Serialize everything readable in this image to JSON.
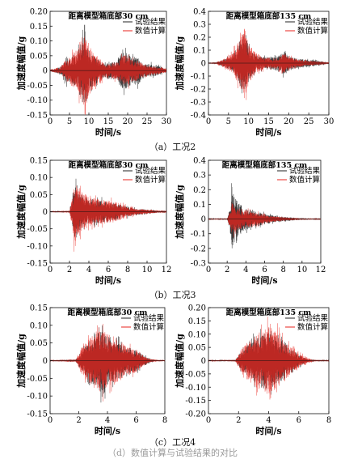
{
  "figure": {
    "captions": [
      "（a）工况2",
      "（b）工况3",
      "（c）工况4"
    ],
    "bottom_fragment": "（d）数值计算与试验结果的对比"
  },
  "chart_data": [
    {
      "type": "line",
      "title": "距离模型箱底部30 cm",
      "xlabel": "时间/s",
      "ylabel": "加速度幅值/g",
      "xlim": [
        0,
        30
      ],
      "ylim": [
        -0.15,
        0.2
      ],
      "xticks": [
        "0",
        "5",
        "10",
        "15",
        "20",
        "25",
        "30"
      ],
      "yticks": [
        "-0.15",
        "-0.10",
        "-0.05",
        "0",
        "0.05",
        "0.10",
        "0.15",
        "0.20"
      ],
      "legend": "top-right",
      "series": [
        {
          "name": "试验结果",
          "color": "#222222",
          "envelope": [
            [
              0,
              0.004
            ],
            [
              1.5,
              0.01
            ],
            [
              3,
              0.02
            ],
            [
              4,
              0.06
            ],
            [
              5,
              0.05
            ],
            [
              6,
              0.07
            ],
            [
              7,
              0.08
            ],
            [
              8,
              0.13
            ],
            [
              9,
              0.16
            ],
            [
              10,
              0.1
            ],
            [
              11,
              0.07
            ],
            [
              12,
              0.06
            ],
            [
              13,
              0.04
            ],
            [
              14,
              0.03
            ],
            [
              15,
              0.04
            ],
            [
              17,
              0.04
            ],
            [
              18,
              0.07
            ],
            [
              19,
              0.09
            ],
            [
              20,
              0.08
            ],
            [
              21,
              0.06
            ],
            [
              22,
              0.07
            ],
            [
              23,
              0.06
            ],
            [
              24,
              0.03
            ],
            [
              26,
              0.03
            ],
            [
              28,
              0.02
            ],
            [
              29.5,
              0.01
            ]
          ]
        },
        {
          "name": "数值计算",
          "color": "#e8231c",
          "envelope": [
            [
              0,
              0.004
            ],
            [
              1.5,
              0.01
            ],
            [
              3,
              0.02
            ],
            [
              4,
              0.05
            ],
            [
              5,
              0.06
            ],
            [
              6,
              0.08
            ],
            [
              7,
              0.09
            ],
            [
              8,
              0.15
            ],
            [
              9,
              0.17
            ],
            [
              10,
              0.12
            ],
            [
              11,
              0.08
            ],
            [
              12,
              0.07
            ],
            [
              13,
              0.05
            ],
            [
              14,
              0.03
            ],
            [
              15,
              0.03
            ],
            [
              17,
              0.04
            ],
            [
              18,
              0.05
            ],
            [
              19,
              0.07
            ],
            [
              20,
              0.07
            ],
            [
              21,
              0.05
            ],
            [
              22,
              0.05
            ],
            [
              23,
              0.04
            ],
            [
              24,
              0.03
            ],
            [
              26,
              0.02
            ],
            [
              28,
              0.015
            ],
            [
              29.5,
              0.01
            ]
          ]
        }
      ]
    },
    {
      "type": "line",
      "title": "距离模型箱底部135 cm",
      "xlabel": "时间/s",
      "ylabel": "加速度幅值/g",
      "xlim": [
        0,
        30
      ],
      "ylim": [
        -0.4,
        0.4
      ],
      "xticks": [
        "0",
        "5",
        "10",
        "15",
        "20",
        "25",
        "30"
      ],
      "yticks": [
        "-0.4",
        "-0.3",
        "-0.2",
        "-0.1",
        "0",
        "0.1",
        "0.2",
        "0.3",
        "0.4"
      ],
      "legend": "top-right",
      "series": [
        {
          "name": "试验结果",
          "color": "#222222",
          "envelope": [
            [
              0,
              0.005
            ],
            [
              2,
              0.01
            ],
            [
              4,
              0.04
            ],
            [
              6,
              0.08
            ],
            [
              7,
              0.15
            ],
            [
              8,
              0.25
            ],
            [
              9,
              0.3
            ],
            [
              10,
              0.2
            ],
            [
              11,
              0.12
            ],
            [
              12,
              0.08
            ],
            [
              14,
              0.06
            ],
            [
              16,
              0.06
            ],
            [
              18,
              0.1
            ],
            [
              19,
              0.12
            ],
            [
              20,
              0.08
            ],
            [
              22,
              0.05
            ],
            [
              24,
              0.04
            ],
            [
              26,
              0.03
            ],
            [
              28,
              0.02
            ],
            [
              29.5,
              0.01
            ]
          ]
        },
        {
          "name": "数值计算",
          "color": "#e8231c",
          "envelope": [
            [
              0,
              0.005
            ],
            [
              2,
              0.01
            ],
            [
              4,
              0.05
            ],
            [
              6,
              0.1
            ],
            [
              7,
              0.18
            ],
            [
              8,
              0.28
            ],
            [
              9,
              0.38
            ],
            [
              10,
              0.22
            ],
            [
              11,
              0.14
            ],
            [
              12,
              0.1
            ],
            [
              14,
              0.06
            ],
            [
              16,
              0.05
            ],
            [
              18,
              0.08
            ],
            [
              19,
              0.1
            ],
            [
              20,
              0.07
            ],
            [
              22,
              0.04
            ],
            [
              24,
              0.03
            ],
            [
              26,
              0.02
            ],
            [
              28,
              0.015
            ],
            [
              29.5,
              0.01
            ]
          ]
        }
      ]
    },
    {
      "type": "line",
      "title": "距离模型箱底部30 cm",
      "xlabel": "时间/s",
      "ylabel": "加速度幅值/g",
      "xlim": [
        0,
        12
      ],
      "ylim": [
        -0.15,
        0.15
      ],
      "xticks": [
        "0",
        "2",
        "4",
        "6",
        "8",
        "10",
        "12"
      ],
      "yticks": [
        "-0.15",
        "-0.10",
        "-0.05",
        "0",
        "0.05",
        "0.10",
        "0.15"
      ],
      "legend": "top-right",
      "series": [
        {
          "name": "试验结果",
          "color": "#222222",
          "envelope": [
            [
              0,
              0.002
            ],
            [
              2,
              0.003
            ],
            [
              2.3,
              0.05
            ],
            [
              2.5,
              0.11
            ],
            [
              2.8,
              0.09
            ],
            [
              3.2,
              0.07
            ],
            [
              4,
              0.05
            ],
            [
              5,
              0.045
            ],
            [
              6,
              0.04
            ],
            [
              7,
              0.03
            ],
            [
              8,
              0.02
            ],
            [
              9,
              0.012
            ],
            [
              10,
              0.008
            ],
            [
              11.2,
              0.004
            ]
          ]
        },
        {
          "name": "数值计算",
          "color": "#e8231c",
          "envelope": [
            [
              0,
              0.002
            ],
            [
              2,
              0.003
            ],
            [
              2.3,
              0.06
            ],
            [
              2.5,
              0.13
            ],
            [
              2.8,
              0.1
            ],
            [
              3.2,
              0.08
            ],
            [
              4,
              0.06
            ],
            [
              5,
              0.05
            ],
            [
              6,
              0.045
            ],
            [
              7,
              0.035
            ],
            [
              8,
              0.02
            ],
            [
              9,
              0.012
            ],
            [
              10,
              0.008
            ],
            [
              11.2,
              0.004
            ]
          ]
        }
      ]
    },
    {
      "type": "line",
      "title": "距离模型箱底部135 cm",
      "xlabel": "时间/s",
      "ylabel": "加速度幅值/g",
      "xlim": [
        0,
        12
      ],
      "ylim": [
        -0.3,
        0.4
      ],
      "xticks": [
        "0",
        "2",
        "4",
        "6",
        "8",
        "10",
        "12"
      ],
      "yticks": [
        "-0.3",
        "-0.2",
        "-0.1",
        "0",
        "0.1",
        "0.2",
        "0.3",
        "0.4"
      ],
      "legend": "top-right",
      "series": [
        {
          "name": "试验结果",
          "color": "#222222",
          "envelope": [
            [
              0,
              0.003
            ],
            [
              2,
              0.005
            ],
            [
              2.3,
              0.1
            ],
            [
              2.5,
              0.3
            ],
            [
              2.8,
              0.2
            ],
            [
              3.2,
              0.15
            ],
            [
              4,
              0.1
            ],
            [
              5,
              0.07
            ],
            [
              6,
              0.05
            ],
            [
              7,
              0.03
            ],
            [
              8,
              0.02
            ],
            [
              9,
              0.012
            ],
            [
              10,
              0.008
            ],
            [
              11.2,
              0.004
            ]
          ]
        },
        {
          "name": "数值计算",
          "color": "#e8231c",
          "envelope": [
            [
              0,
              0.003
            ],
            [
              2,
              0.005
            ],
            [
              2.3,
              0.06
            ],
            [
              2.5,
              0.15
            ],
            [
              2.8,
              0.12
            ],
            [
              3.2,
              0.1
            ],
            [
              4,
              0.08
            ],
            [
              5,
              0.06
            ],
            [
              6,
              0.04
            ],
            [
              7,
              0.025
            ],
            [
              8,
              0.015
            ],
            [
              9,
              0.01
            ],
            [
              10,
              0.006
            ],
            [
              11.2,
              0.004
            ]
          ]
        }
      ]
    },
    {
      "type": "line",
      "title": "距离模型箱底部30 cm",
      "xlabel": "时间/s",
      "ylabel": "加速度幅值/g",
      "xlim": [
        0,
        8
      ],
      "ylim": [
        -0.15,
        0.15
      ],
      "xticks": [
        "0",
        "2",
        "4",
        "6",
        "8"
      ],
      "yticks": [
        "-0.15",
        "-0.10",
        "-0.05",
        "0",
        "0.05",
        "0.10",
        "0.15"
      ],
      "legend": "top-right",
      "series": [
        {
          "name": "试验结果",
          "color": "#222222",
          "envelope": [
            [
              0,
              0.002
            ],
            [
              1.8,
              0.004
            ],
            [
              2.2,
              0.04
            ],
            [
              2.8,
              0.08
            ],
            [
              3.2,
              0.11
            ],
            [
              3.6,
              0.12
            ],
            [
              4,
              0.1
            ],
            [
              4.5,
              0.08
            ],
            [
              5,
              0.06
            ],
            [
              5.5,
              0.05
            ],
            [
              6,
              0.04
            ],
            [
              6.5,
              0.02
            ],
            [
              7,
              0.006
            ],
            [
              7.6,
              0.002
            ]
          ]
        },
        {
          "name": "数值计算",
          "color": "#e8231c",
          "envelope": [
            [
              0,
              0.002
            ],
            [
              1.8,
              0.004
            ],
            [
              2.2,
              0.05
            ],
            [
              2.8,
              0.09
            ],
            [
              3.2,
              0.11
            ],
            [
              3.6,
              0.12
            ],
            [
              4,
              0.1
            ],
            [
              4.5,
              0.09
            ],
            [
              5,
              0.07
            ],
            [
              5.5,
              0.05
            ],
            [
              6,
              0.045
            ],
            [
              6.5,
              0.02
            ],
            [
              7,
              0.006
            ],
            [
              7.6,
              0.002
            ]
          ]
        }
      ]
    },
    {
      "type": "line",
      "title": "距离模型箱底部135 cm",
      "xlabel": "时间/s",
      "ylabel": "加速度幅值/g",
      "xlim": [
        0,
        8
      ],
      "ylim": [
        -0.2,
        0.2
      ],
      "xticks": [
        "0",
        "2",
        "4",
        "6",
        "8"
      ],
      "yticks": [
        "-0.20",
        "-0.15",
        "-0.10",
        "-0.05",
        "0",
        "0.05",
        "0.10",
        "0.15",
        "0.20"
      ],
      "legend": "top-right",
      "series": [
        {
          "name": "试验结果",
          "color": "#222222",
          "envelope": [
            [
              0,
              0.002
            ],
            [
              1.8,
              0.004
            ],
            [
              2.2,
              0.05
            ],
            [
              2.8,
              0.09
            ],
            [
              3.2,
              0.12
            ],
            [
              3.6,
              0.14
            ],
            [
              4,
              0.15
            ],
            [
              4.5,
              0.12
            ],
            [
              5,
              0.1
            ],
            [
              5.5,
              0.06
            ],
            [
              6,
              0.03
            ],
            [
              6.5,
              0.01
            ],
            [
              7,
              0.004
            ],
            [
              7.6,
              0.002
            ]
          ]
        },
        {
          "name": "数值计算",
          "color": "#e8231c",
          "envelope": [
            [
              0,
              0.002
            ],
            [
              1.8,
              0.004
            ],
            [
              2.2,
              0.06
            ],
            [
              2.8,
              0.11
            ],
            [
              3.2,
              0.14
            ],
            [
              3.6,
              0.16
            ],
            [
              4,
              0.17
            ],
            [
              4.5,
              0.15
            ],
            [
              5,
              0.1
            ],
            [
              5.5,
              0.07
            ],
            [
              6,
              0.04
            ],
            [
              6.5,
              0.015
            ],
            [
              7,
              0.004
            ],
            [
              7.6,
              0.002
            ]
          ]
        }
      ]
    }
  ]
}
